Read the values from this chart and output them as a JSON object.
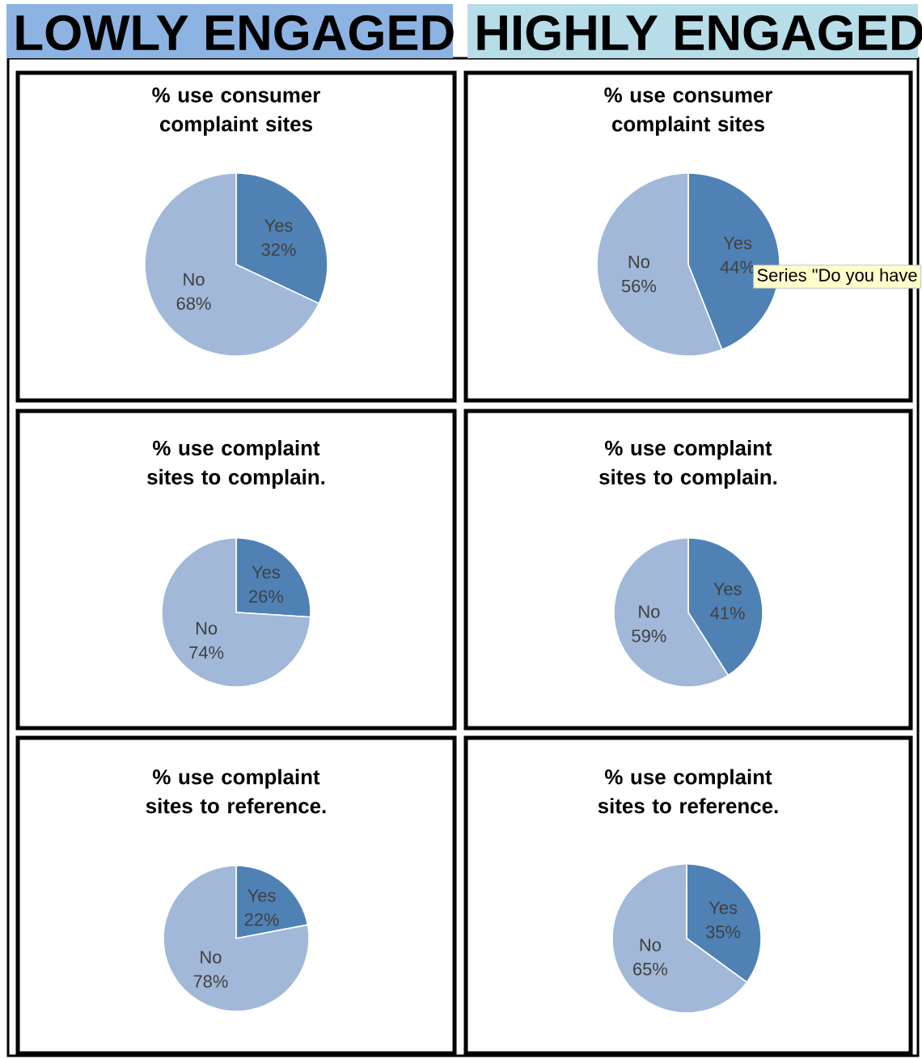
{
  "chart_data": [
    {
      "type": "other",
      "title": "LOWLY ENGAGED",
      "color": "#8db3e2"
    },
    {
      "type": "other",
      "title": "HIGHLY ENGAGED",
      "color": "#b7dde8"
    },
    {
      "type": "pie",
      "title": "% use consumer complaint sites",
      "categories": [
        "Yes",
        "No"
      ],
      "values": [
        32,
        68
      ],
      "value_labels": [
        "32%",
        "68%"
      ],
      "colors": [
        "#4f81b5",
        "#a1b8d8"
      ]
    },
    {
      "type": "pie",
      "title": "% use consumer complaint sites",
      "categories": [
        "Yes",
        "No"
      ],
      "values": [
        44,
        56
      ],
      "value_labels": [
        "44%",
        "56%"
      ],
      "colors": [
        "#4f81b5",
        "#a1b8d8"
      ],
      "annotations": [
        "Series \"Do you have"
      ]
    },
    {
      "type": "pie",
      "title": "% use complaint sites to complain.",
      "categories": [
        "Yes",
        "No"
      ],
      "values": [
        26,
        74
      ],
      "value_labels": [
        "26%",
        "74%"
      ],
      "colors": [
        "#4f81b5",
        "#a1b8d8"
      ]
    },
    {
      "type": "pie",
      "title": "% use complaint sites to complain.",
      "categories": [
        "Yes",
        "No"
      ],
      "values": [
        41,
        59
      ],
      "value_labels": [
        "41%",
        "59%"
      ],
      "colors": [
        "#4f81b5",
        "#a1b8d8"
      ]
    },
    {
      "type": "pie",
      "title": "% use complaint sites to reference.",
      "categories": [
        "Yes",
        "No"
      ],
      "values": [
        22,
        78
      ],
      "value_labels": [
        "22%",
        "78%"
      ],
      "colors": [
        "#4f81b5",
        "#a1b8d8"
      ]
    },
    {
      "type": "pie",
      "title": "% use complaint sites to reference.",
      "categories": [
        "Yes",
        "No"
      ],
      "values": [
        35,
        65
      ],
      "value_labels": [
        "35%",
        "65%"
      ],
      "colors": [
        "#4f81b5",
        "#a1b8d8"
      ]
    }
  ]
}
